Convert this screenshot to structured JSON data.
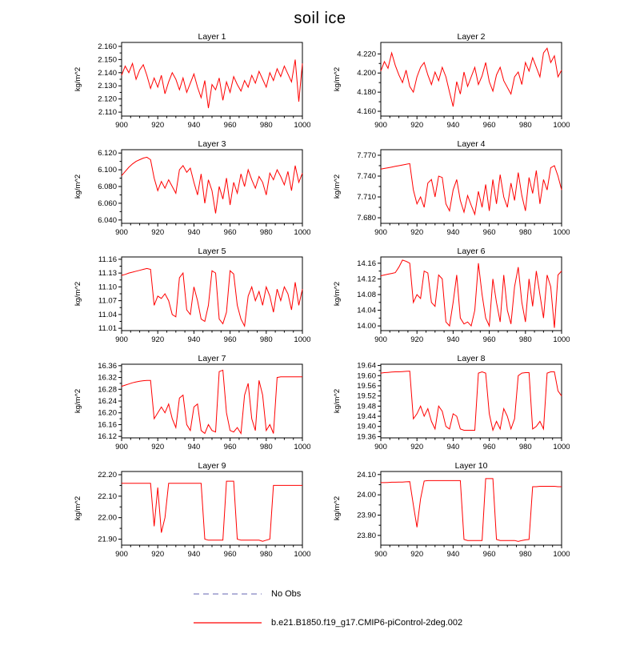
{
  "page": {
    "title": "soil ice"
  },
  "legend": {
    "no_obs": {
      "label": "No Obs",
      "color": "#9999cc",
      "style": "dashed"
    },
    "series": {
      "label": "b.e21.B1850.f19_g17.CMIP6-piControl-2deg.002",
      "color": "#ff0000",
      "style": "solid"
    }
  },
  "chart_data": {
    "type": "line",
    "title": "soil ice",
    "ylabel": "kg/m^2",
    "line_color": "#ff0000",
    "x_start": 900,
    "x_step": 2,
    "xlim": [
      900,
      1000
    ],
    "xticks": [
      900,
      920,
      940,
      960,
      980,
      1000
    ],
    "legend_position": "bottom",
    "grid": false,
    "charts": [
      {
        "title": "Layer 1",
        "y_decimals": 3,
        "yticks": [
          2.11,
          2.12,
          2.13,
          2.14,
          2.15,
          2.16
        ],
        "ylim": [
          2.107,
          2.163
        ],
        "values": [
          2.138,
          2.145,
          2.14,
          2.147,
          2.135,
          2.142,
          2.146,
          2.138,
          2.128,
          2.136,
          2.129,
          2.138,
          2.124,
          2.133,
          2.14,
          2.135,
          2.127,
          2.136,
          2.125,
          2.132,
          2.139,
          2.129,
          2.121,
          2.134,
          2.113,
          2.131,
          2.127,
          2.136,
          2.119,
          2.133,
          2.125,
          2.137,
          2.131,
          2.126,
          2.134,
          2.129,
          2.138,
          2.132,
          2.141,
          2.135,
          2.129,
          2.14,
          2.134,
          2.143,
          2.137,
          2.145,
          2.139,
          2.133,
          2.15,
          2.118,
          2.147
        ]
      },
      {
        "title": "Layer 2",
        "y_decimals": 3,
        "yticks": [
          4.16,
          4.18,
          4.2,
          4.22
        ],
        "ylim": [
          4.155,
          4.232
        ],
        "values": [
          4.202,
          4.212,
          4.205,
          4.221,
          4.208,
          4.198,
          4.19,
          4.203,
          4.186,
          4.18,
          4.196,
          4.206,
          4.211,
          4.198,
          4.188,
          4.201,
          4.192,
          4.206,
          4.196,
          4.18,
          4.165,
          4.191,
          4.178,
          4.201,
          4.186,
          4.196,
          4.206,
          4.188,
          4.197,
          4.211,
          4.191,
          4.181,
          4.198,
          4.206,
          4.192,
          4.185,
          4.178,
          4.196,
          4.201,
          4.188,
          4.211,
          4.202,
          4.216,
          4.206,
          4.196,
          4.221,
          4.226,
          4.211,
          4.218,
          4.196,
          4.203
        ]
      },
      {
        "title": "Layer 3",
        "y_decimals": 3,
        "yticks": [
          6.04,
          6.06,
          6.08,
          6.1,
          6.12
        ],
        "ylim": [
          6.036,
          6.124
        ],
        "values": [
          6.093,
          6.098,
          6.103,
          6.107,
          6.11,
          6.112,
          6.114,
          6.115,
          6.112,
          6.09,
          6.075,
          6.086,
          6.078,
          6.088,
          6.08,
          6.072,
          6.1,
          6.105,
          6.097,
          6.102,
          6.085,
          6.07,
          6.095,
          6.06,
          6.088,
          6.075,
          6.048,
          6.08,
          6.065,
          6.09,
          6.058,
          6.085,
          6.072,
          6.095,
          6.08,
          6.1,
          6.088,
          6.078,
          6.092,
          6.085,
          6.07,
          6.096,
          6.088,
          6.1,
          6.092,
          6.082,
          6.098,
          6.075,
          6.105,
          6.085,
          6.096
        ]
      },
      {
        "title": "Layer 4",
        "y_decimals": 3,
        "yticks": [
          7.68,
          7.71,
          7.74,
          7.77
        ],
        "ylim": [
          7.672,
          7.778
        ],
        "values": [
          7.75,
          7.751,
          7.752,
          7.753,
          7.754,
          7.755,
          7.756,
          7.757,
          7.758,
          7.72,
          7.7,
          7.71,
          7.695,
          7.73,
          7.735,
          7.71,
          7.74,
          7.738,
          7.7,
          7.69,
          7.72,
          7.735,
          7.705,
          7.688,
          7.712,
          7.698,
          7.685,
          7.718,
          7.695,
          7.728,
          7.69,
          7.735,
          7.7,
          7.742,
          7.71,
          7.695,
          7.73,
          7.705,
          7.745,
          7.712,
          7.69,
          7.738,
          7.715,
          7.748,
          7.7,
          7.735,
          7.72,
          7.752,
          7.755,
          7.74,
          7.72
        ]
      },
      {
        "title": "Layer 5",
        "y_decimals": 2,
        "yticks": [
          11.01,
          11.04,
          11.07,
          11.1,
          11.13,
          11.16
        ],
        "ylim": [
          11.005,
          11.165
        ],
        "values": [
          11.125,
          11.127,
          11.13,
          11.132,
          11.134,
          11.136,
          11.138,
          11.14,
          11.138,
          11.06,
          11.08,
          11.075,
          11.085,
          11.07,
          11.04,
          11.035,
          11.12,
          11.13,
          11.05,
          11.04,
          11.1,
          11.07,
          11.03,
          11.025,
          11.06,
          11.135,
          11.13,
          11.03,
          11.02,
          11.045,
          11.135,
          11.128,
          11.06,
          11.03,
          11.015,
          11.08,
          11.1,
          11.07,
          11.09,
          11.06,
          11.1,
          11.08,
          11.045,
          11.095,
          11.07,
          11.1,
          11.085,
          11.05,
          11.11,
          11.06,
          11.095
        ]
      },
      {
        "title": "Layer 6",
        "y_decimals": 2,
        "yticks": [
          14.0,
          14.04,
          14.08,
          14.12,
          14.16
        ],
        "ylim": [
          13.988,
          14.176
        ],
        "values": [
          14.128,
          14.13,
          14.132,
          14.134,
          14.136,
          14.15,
          14.168,
          14.165,
          14.16,
          14.06,
          14.08,
          14.07,
          14.14,
          14.135,
          14.06,
          14.05,
          14.13,
          14.12,
          14.01,
          14.0,
          14.06,
          14.13,
          14.02,
          14.005,
          14.01,
          14.0,
          14.04,
          14.16,
          14.08,
          14.02,
          14.0,
          14.12,
          14.06,
          14.01,
          14.13,
          14.04,
          14.005,
          14.1,
          14.15,
          14.06,
          14.01,
          14.12,
          14.05,
          14.14,
          14.08,
          14.02,
          14.13,
          14.1,
          13.995,
          14.13,
          14.14
        ]
      },
      {
        "title": "Layer 7",
        "y_decimals": 2,
        "yticks": [
          16.12,
          16.16,
          16.2,
          16.24,
          16.28,
          16.32,
          16.36
        ],
        "ylim": [
          16.115,
          16.365
        ],
        "values": [
          16.29,
          16.294,
          16.298,
          16.302,
          16.305,
          16.307,
          16.309,
          16.31,
          16.31,
          16.18,
          16.2,
          16.22,
          16.2,
          16.23,
          16.18,
          16.15,
          16.25,
          16.26,
          16.16,
          16.14,
          16.22,
          16.23,
          16.14,
          16.13,
          16.16,
          16.14,
          16.135,
          16.34,
          16.345,
          16.2,
          16.14,
          16.135,
          16.15,
          16.13,
          16.26,
          16.3,
          16.18,
          16.14,
          16.31,
          16.26,
          16.14,
          16.16,
          16.13,
          16.32,
          16.322,
          16.322,
          16.322,
          16.322,
          16.322,
          16.322,
          16.322
        ]
      },
      {
        "title": "Layer 8",
        "y_decimals": 2,
        "yticks": [
          19.36,
          19.4,
          19.44,
          19.48,
          19.52,
          19.56,
          19.6,
          19.64
        ],
        "ylim": [
          19.355,
          19.645
        ],
        "values": [
          19.61,
          19.612,
          19.613,
          19.614,
          19.615,
          19.615,
          19.616,
          19.617,
          19.618,
          19.43,
          19.45,
          19.48,
          19.44,
          19.47,
          19.42,
          19.39,
          19.48,
          19.46,
          19.4,
          19.39,
          19.45,
          19.44,
          19.39,
          19.385,
          19.385,
          19.385,
          19.385,
          19.61,
          19.615,
          19.61,
          19.45,
          19.385,
          19.42,
          19.39,
          19.47,
          19.44,
          19.39,
          19.43,
          19.6,
          19.61,
          19.612,
          19.612,
          19.39,
          19.4,
          19.42,
          19.39,
          19.61,
          19.615,
          19.615,
          19.54,
          19.52
        ]
      },
      {
        "title": "Layer 9",
        "y_decimals": 2,
        "yticks": [
          21.9,
          22.0,
          22.1,
          22.2
        ],
        "ylim": [
          21.872,
          22.215
        ],
        "values": [
          22.16,
          22.16,
          22.16,
          22.16,
          22.16,
          22.16,
          22.16,
          22.16,
          22.16,
          21.96,
          22.14,
          21.93,
          22.0,
          22.16,
          22.16,
          22.16,
          22.16,
          22.16,
          22.16,
          22.16,
          22.16,
          22.16,
          22.16,
          21.9,
          21.895,
          21.895,
          21.895,
          21.895,
          21.895,
          22.17,
          22.17,
          22.17,
          21.9,
          21.895,
          21.895,
          21.895,
          21.895,
          21.895,
          21.895,
          21.89,
          21.895,
          21.9,
          22.15,
          22.15,
          22.15,
          22.15,
          22.15,
          22.15,
          22.15,
          22.15,
          22.15
        ]
      },
      {
        "title": "Layer 10",
        "y_decimals": 2,
        "yticks": [
          23.8,
          23.9,
          24.0,
          24.1
        ],
        "ylim": [
          23.752,
          24.115
        ],
        "values": [
          24.06,
          24.06,
          24.061,
          24.062,
          24.062,
          24.063,
          24.063,
          24.064,
          24.065,
          23.95,
          23.84,
          23.98,
          24.068,
          24.07,
          24.07,
          24.07,
          24.07,
          24.07,
          24.07,
          24.07,
          24.07,
          24.07,
          24.07,
          23.78,
          23.775,
          23.775,
          23.775,
          23.775,
          23.775,
          24.08,
          24.08,
          24.08,
          23.78,
          23.775,
          23.775,
          23.775,
          23.775,
          23.775,
          23.77,
          23.775,
          23.778,
          23.78,
          24.04,
          24.04,
          24.042,
          24.042,
          24.042,
          24.042,
          24.042,
          24.04,
          24.04
        ]
      }
    ]
  }
}
